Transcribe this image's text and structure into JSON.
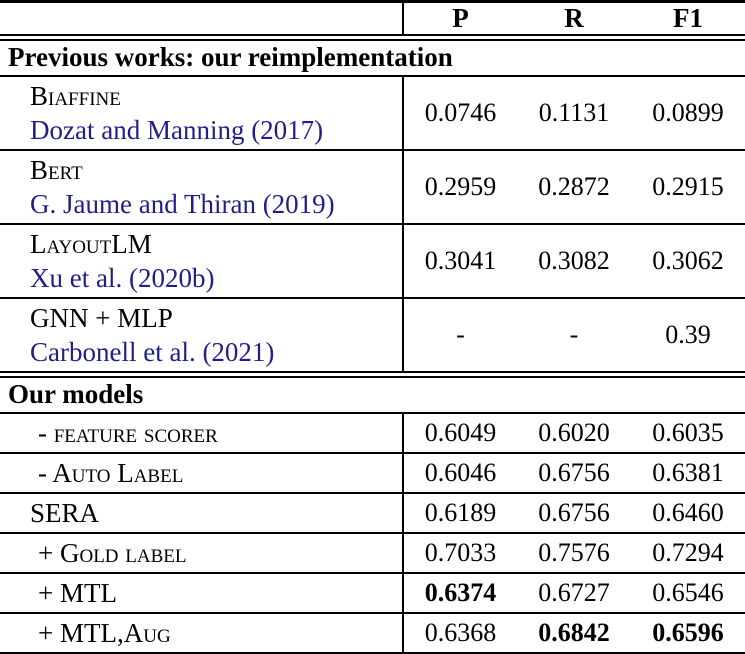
{
  "columns": {
    "p": "P",
    "r": "R",
    "f1": "F1"
  },
  "sections": [
    {
      "title": "Previous works: our reimplementation",
      "rows": [
        {
          "model": "Biaffine",
          "citation": "Dozat and Manning (2017)",
          "p": "0.0746",
          "r": "0.1131",
          "f1": "0.0899"
        },
        {
          "model": "Bert",
          "citation": "G. Jaume and Thiran (2019)",
          "p": "0.2959",
          "r": "0.2872",
          "f1": "0.2915"
        },
        {
          "model": "LayoutLM",
          "citation": "Xu et al. (2020b)",
          "p": "0.3041",
          "r": "0.3082",
          "f1": "0.3062"
        },
        {
          "model": "GNN + MLP",
          "citation": "Carbonell et al. (2021)",
          "p": "-",
          "r": "-",
          "f1": "0.39"
        }
      ]
    },
    {
      "title": "Our models",
      "rows": [
        {
          "model": "- feature scorer",
          "p": "0.6049",
          "r": "0.6020",
          "f1": "0.6035"
        },
        {
          "model": "- Auto Label",
          "p": "0.6046",
          "r": "0.6756",
          "f1": "0.6381"
        },
        {
          "model": "SERA",
          "p": "0.6189",
          "r": "0.6756",
          "f1": "0.6460"
        },
        {
          "model": "+ Gold label",
          "p": "0.7033",
          "r": "0.7576",
          "f1": "0.7294"
        },
        {
          "model": "+ MTL",
          "p": "0.6374",
          "r": "0.6727",
          "f1": "0.6546"
        },
        {
          "model": "+ MTL,Aug",
          "p": "0.6368",
          "r": "0.6842",
          "f1": "0.6596"
        }
      ]
    }
  ],
  "colors": {
    "citation_link": "#1f1f8c",
    "text": "#000000",
    "background": "#ffffff"
  }
}
